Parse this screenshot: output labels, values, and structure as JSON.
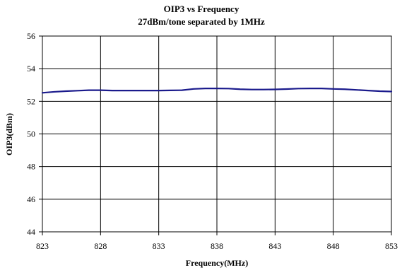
{
  "chart_data": {
    "type": "line",
    "title": "OIP3 vs Frequency",
    "subtitle": "27dBm/tone separated by 1MHz",
    "xlabel": "Frequency(MHz)",
    "ylabel": "OIP3(dBm)",
    "xlim": [
      823,
      853
    ],
    "ylim": [
      44,
      56
    ],
    "xticks": [
      823,
      828,
      833,
      838,
      843,
      848,
      853
    ],
    "yticks": [
      44,
      46,
      48,
      50,
      52,
      54,
      56
    ],
    "xtick_labels": [
      "823",
      "828",
      "833",
      "838",
      "843",
      "848",
      "853"
    ],
    "ytick_labels": [
      "44",
      "46",
      "48",
      "50",
      "52",
      "54",
      "56"
    ],
    "grid": true,
    "legend": "none",
    "series": [
      {
        "color": "#1a1a8c",
        "x": [
          823,
          824,
          825,
          826,
          827,
          828,
          829,
          830,
          831,
          832,
          833,
          834,
          835,
          836,
          837,
          838,
          839,
          840,
          841,
          842,
          843,
          844,
          845,
          846,
          847,
          848,
          849,
          850,
          851,
          852,
          853
        ],
        "y": [
          52.52,
          52.58,
          52.62,
          52.65,
          52.68,
          52.68,
          52.66,
          52.66,
          52.66,
          52.66,
          52.66,
          52.67,
          52.68,
          52.76,
          52.79,
          52.79,
          52.78,
          52.74,
          52.72,
          52.72,
          52.73,
          52.75,
          52.78,
          52.79,
          52.79,
          52.76,
          52.74,
          52.7,
          52.66,
          52.62,
          52.6
        ]
      }
    ]
  }
}
